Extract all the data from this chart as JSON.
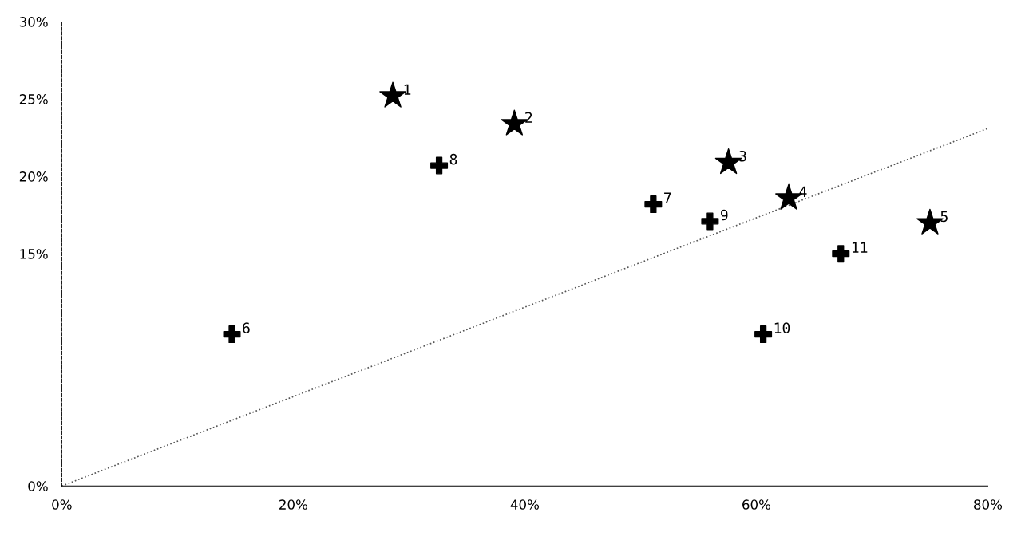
{
  "chart_data": {
    "type": "scatter",
    "xlim": [
      0,
      80
    ],
    "ylim": [
      0,
      30
    ],
    "xticks": [
      {
        "value": 0,
        "label": "0%"
      },
      {
        "value": 20,
        "label": "20%"
      },
      {
        "value": 40,
        "label": "40%"
      },
      {
        "value": 60,
        "label": "60%"
      },
      {
        "value": 80,
        "label": "80%"
      }
    ],
    "yticks": [
      {
        "value": 0,
        "label": "0%"
      },
      {
        "value": 15,
        "label": "15%"
      },
      {
        "value": 20,
        "label": "20%"
      },
      {
        "value": 25,
        "label": "25%"
      },
      {
        "value": 30,
        "label": "30%"
      }
    ],
    "grid": false,
    "legend": false,
    "series": [
      {
        "marker": "star",
        "color": "#000000",
        "x": [
          28.6,
          39.1,
          57.6,
          62.8,
          75.0
        ],
        "values": [
          25.2,
          23.4,
          20.9,
          18.6,
          17.0
        ]
      },
      {
        "marker": "cross",
        "color": "#000000",
        "x": [
          14.7,
          51.1,
          32.6,
          56.0,
          60.6,
          67.3
        ],
        "values": [
          9.8,
          18.2,
          20.7,
          17.1,
          9.8,
          15.0
        ]
      },
      {
        "type": "line",
        "marker": "none",
        "line_style": "dotted",
        "color": "#555555",
        "x": [
          0,
          80
        ],
        "values": [
          0,
          23.1
        ]
      }
    ],
    "annotations": [
      {
        "text": "1",
        "x": 28.6,
        "y": 25.2
      },
      {
        "text": "2",
        "x": 39.1,
        "y": 23.4
      },
      {
        "text": "3",
        "x": 57.6,
        "y": 20.9
      },
      {
        "text": "4",
        "x": 62.8,
        "y": 18.6
      },
      {
        "text": "5",
        "x": 75.0,
        "y": 17.0
      },
      {
        "text": "6",
        "x": 14.7,
        "y": 9.8
      },
      {
        "text": "7",
        "x": 51.1,
        "y": 18.2
      },
      {
        "text": "8",
        "x": 32.6,
        "y": 20.7
      },
      {
        "text": "9",
        "x": 56.0,
        "y": 17.1
      },
      {
        "text": "10",
        "x": 60.6,
        "y": 9.8
      },
      {
        "text": "11",
        "x": 67.3,
        "y": 15.0
      }
    ]
  }
}
